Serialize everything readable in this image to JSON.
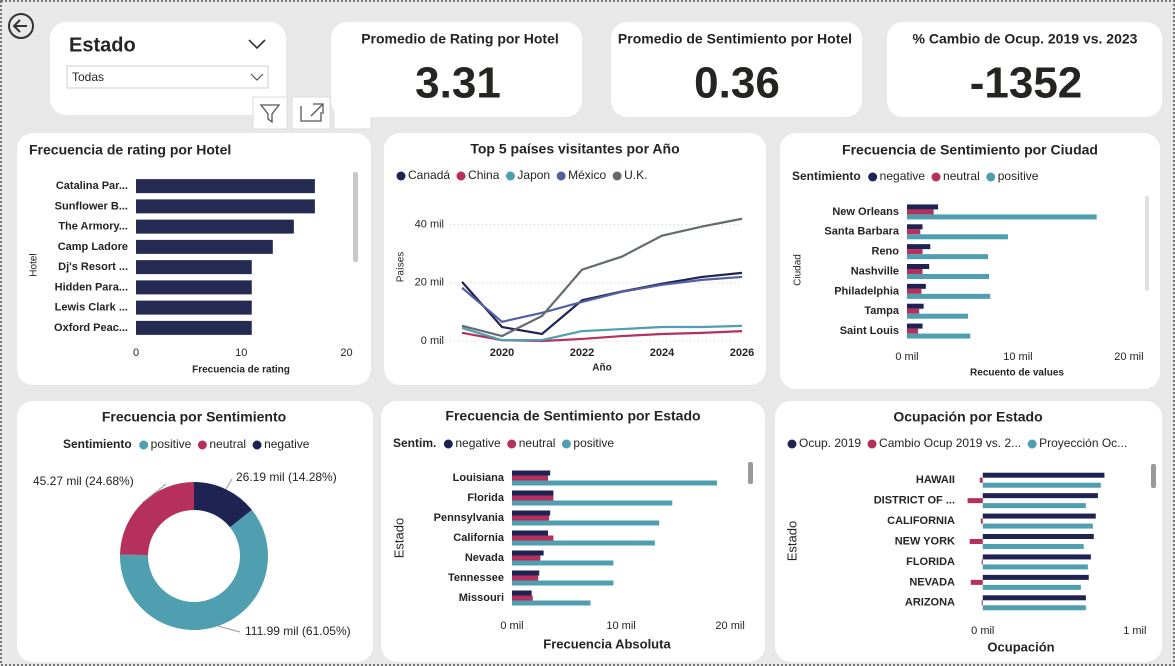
{
  "slicer": {
    "title": "Estado",
    "value": "Todas"
  },
  "cards": [
    {
      "title": "Promedio de Rating por Hotel",
      "value": 3.31
    },
    {
      "title": "Promedio de Sentimiento por Hotel",
      "value": 0.36
    },
    {
      "title": "% Cambio de Ocup. 2019 vs. 2023",
      "value": -1352
    }
  ],
  "chart_data": [
    {
      "type": "bar",
      "orientation": "horizontal",
      "title": "Frecuencia de rating por Hotel",
      "x_label": "Frecuencia de rating",
      "y_label": "Hotel",
      "categories": [
        "Catalina Par...",
        "Sunflower B...",
        "The Armory...",
        "Camp Ladore",
        "Dj's Resort ...",
        "Hidden Para...",
        "Lewis Clark ...",
        "Oxford Peac..."
      ],
      "values": [
        17,
        17,
        15,
        13,
        11,
        11,
        11,
        11
      ],
      "color": "#252a52",
      "xlim": [
        0,
        21
      ],
      "xticks": [
        0,
        10,
        20
      ],
      "grid": false
    },
    {
      "type": "line",
      "title": "Top 5 países visitantes por Año",
      "x_label": "Año",
      "y_label": "Países",
      "x": [
        2019,
        2020,
        2021,
        2022,
        2023,
        2024,
        2025,
        2026
      ],
      "xlim": [
        2019,
        2026
      ],
      "xticks": [
        2020,
        2022,
        2024,
        2026
      ],
      "ylim": [
        0,
        45000
      ],
      "yticks": [
        {
          "value": 0,
          "label": "0 mil"
        },
        {
          "value": 20000,
          "label": "20 mil"
        },
        {
          "value": 40000,
          "label": "40 mil"
        }
      ],
      "grid": true,
      "series": [
        {
          "name": "Canadá",
          "color": "#1f2354",
          "values": [
            20300,
            4800,
            2400,
            14000,
            17000,
            19700,
            22000,
            23400
          ]
        },
        {
          "name": "China",
          "color": "#b5305c",
          "values": [
            2800,
            300,
            0,
            700,
            1700,
            2400,
            2800,
            3400
          ]
        },
        {
          "name": "Japon",
          "color": "#4f9fb0",
          "values": [
            4500,
            300,
            300,
            3400,
            4100,
            4800,
            4800,
            5200
          ]
        },
        {
          "name": "México",
          "color": "#5560a0",
          "values": [
            18300,
            6600,
            9700,
            13400,
            16900,
            19300,
            21000,
            22000
          ]
        },
        {
          "name": "U.K.",
          "color": "#646a6e",
          "values": [
            5200,
            1700,
            8600,
            24500,
            29000,
            36200,
            39300,
            42000
          ]
        }
      ]
    },
    {
      "type": "bar",
      "orientation": "horizontal",
      "title": "Frecuencia de Sentimiento por Ciudad",
      "legend_title": "Sentimiento",
      "x_label": "Recuento de values",
      "y_label": "Ciudad",
      "categories": [
        "New Orleans",
        "Santa Barbara",
        "Reno",
        "Nashville",
        "Philadelphia",
        "Tampa",
        "Saint Louis"
      ],
      "xlim": [
        0,
        21000
      ],
      "xticks": [
        {
          "value": 0,
          "label": "0 mil"
        },
        {
          "value": 10000,
          "label": "10 mil"
        },
        {
          "value": 20000,
          "label": "20 mil"
        }
      ],
      "grid": false,
      "series": [
        {
          "name": "negative",
          "color": "#1f2354",
          "values": [
            2800,
            1400,
            2100,
            2000,
            1700,
            1500,
            1400
          ]
        },
        {
          "name": "neutral",
          "color": "#b5305c",
          "values": [
            2400,
            1200,
            1400,
            1400,
            1300,
            1100,
            1000
          ]
        },
        {
          "name": "positive",
          "color": "#4f9fb0",
          "values": [
            17100,
            9100,
            7300,
            7400,
            7500,
            5500,
            5700
          ]
        }
      ]
    },
    {
      "type": "pie",
      "donut": true,
      "title": "Frecuencia por Sentimiento",
      "legend_title": "Sentimiento",
      "categories": [
        "positive",
        "neutral",
        "negative"
      ],
      "values": [
        111990,
        45270,
        26190
      ],
      "value_labels": [
        "111.99 mil (61.05%)",
        "45.27 mil (24.68%)",
        "26.19 mil (14.28%)"
      ],
      "colors": [
        "#4f9fb0",
        "#b5305c",
        "#1f2354"
      ]
    },
    {
      "type": "bar",
      "orientation": "horizontal",
      "title": "Frecuencia de Sentimiento por Estado",
      "legend_title": "Sentim.",
      "x_label": "Frecuencia Absoluta",
      "y_label": "Estado",
      "categories": [
        "Louisiana",
        "Florida",
        "Pennsylvania",
        "California",
        "Nevada",
        "Tennessee",
        "Missouri"
      ],
      "xlim": [
        0,
        21000
      ],
      "xticks": [
        {
          "value": 0,
          "label": "0 mil"
        },
        {
          "value": 10000,
          "label": "10 mil"
        },
        {
          "value": 20000,
          "label": "20 mil"
        }
      ],
      "grid": false,
      "series": [
        {
          "name": "negative",
          "color": "#1f2354",
          "values": [
            3500,
            3800,
            3500,
            3300,
            2900,
            2500,
            1800
          ]
        },
        {
          "name": "neutral",
          "color": "#b5305c",
          "values": [
            3300,
            3800,
            3400,
            3800,
            2600,
            2400,
            1900
          ]
        },
        {
          "name": "positive",
          "color": "#4f9fb0",
          "values": [
            18800,
            14700,
            13500,
            13100,
            9300,
            9300,
            7200
          ]
        }
      ]
    },
    {
      "type": "bar",
      "orientation": "horizontal",
      "title": "Ocupación por Estado",
      "x_label": "Ocupación",
      "y_label": "Estado",
      "categories": [
        "HAWAII",
        "DISTRICT OF ...",
        "CALIFORNIA",
        "NEW YORK",
        "FLORIDA",
        "NEVADA",
        "ARIZONA"
      ],
      "xlim": [
        -130,
        1080
      ],
      "xticks": [
        {
          "value": 0,
          "label": "0 mil"
        },
        {
          "value": 1000,
          "label": "1 mil"
        }
      ],
      "grid": false,
      "series": [
        {
          "name": "Ocup. 2019",
          "color": "#1f2354",
          "values": [
            800,
            757,
            743,
            730,
            711,
            697,
            678
          ]
        },
        {
          "name": "Cambio Ocup 2019 vs. 2...",
          "color": "#b5305c",
          "values": [
            -20,
            -100,
            -13,
            -86,
            -7,
            -79,
            -7
          ]
        },
        {
          "name": "Proyección Oc...",
          "color": "#4f9fb0",
          "values": [
            776,
            678,
            724,
            664,
            691,
            645,
            678
          ]
        }
      ]
    }
  ]
}
